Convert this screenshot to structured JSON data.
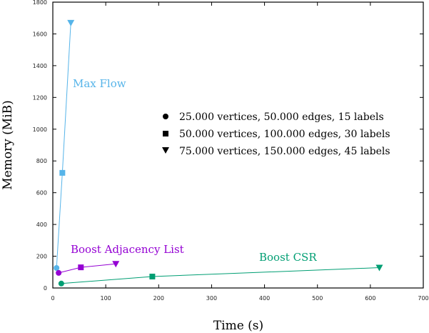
{
  "chart_data": {
    "type": "line",
    "xlabel": "Time (s)",
    "ylabel": "Memory (MiB)",
    "xlim": [
      0,
      700
    ],
    "ylim": [
      0,
      1800
    ],
    "xticks": [
      0,
      100,
      200,
      300,
      400,
      500,
      600,
      700
    ],
    "yticks": [
      0,
      200,
      400,
      600,
      800,
      1000,
      1200,
      1400,
      1600,
      1800
    ],
    "grid": false,
    "legend_placement": "center-right",
    "legend": [
      {
        "marker": "circle",
        "label": "25.000 vertices, 50.000 edges, 15 labels"
      },
      {
        "marker": "square",
        "label": "50.000 vertices, 100.000 edges, 30 labels"
      },
      {
        "marker": "triangle-down",
        "label": "75.000 vertices, 150.000 edges, 45 labels"
      }
    ],
    "series": [
      {
        "name": "Max Flow",
        "color": "#56B4E9",
        "x": [
          7,
          18,
          34
        ],
        "y": [
          126,
          725,
          1670
        ]
      },
      {
        "name": "Boost Adjacency List",
        "color": "#9400D3",
        "x": [
          11,
          53,
          119
        ],
        "y": [
          95,
          130,
          152
        ]
      },
      {
        "name": "Boost CSR",
        "color": "#009E73",
        "x": [
          16,
          188,
          617
        ],
        "y": [
          28,
          72,
          128
        ]
      }
    ]
  }
}
